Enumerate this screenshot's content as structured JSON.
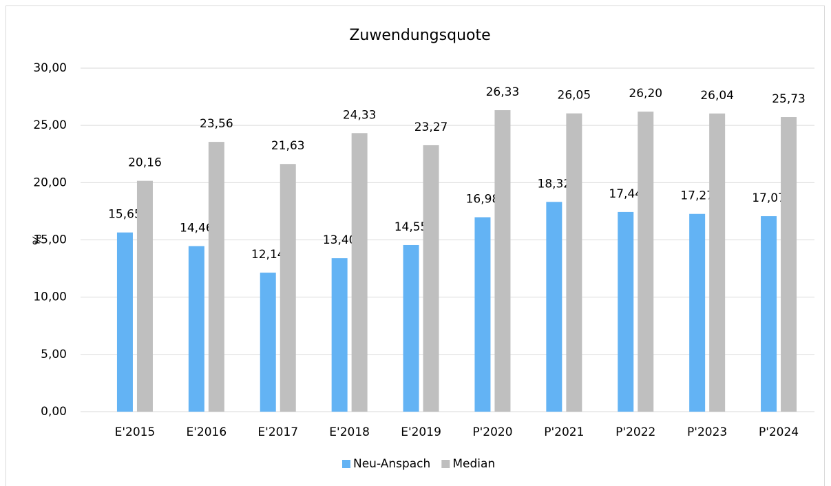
{
  "chart_data": {
    "type": "bar",
    "title": "Zuwendungsquote",
    "y_label": "%",
    "categories": [
      "E'2015",
      "E'2016",
      "E'2017",
      "E'2018",
      "E'2019",
      "P'2020",
      "P'2021",
      "P'2022",
      "P'2023",
      "P'2024"
    ],
    "series": [
      {
        "name": "Neu-Anspach",
        "color": "#63b3f4",
        "values": [
          15.65,
          14.46,
          12.14,
          13.4,
          14.55,
          16.98,
          18.32,
          17.44,
          17.27,
          17.07
        ],
        "value_labels": [
          "15,65",
          "14,46",
          "12,14",
          "13,40",
          "14,55",
          "16,98",
          "18,32",
          "17,44",
          "17,27",
          "17,07"
        ]
      },
      {
        "name": "Median",
        "color": "#bfbfbf",
        "values": [
          20.16,
          23.56,
          21.63,
          24.33,
          23.27,
          26.33,
          26.05,
          26.2,
          26.04,
          25.73
        ],
        "value_labels": [
          "20,16",
          "23,56",
          "21,63",
          "24,33",
          "23,27",
          "26,33",
          "26,05",
          "26,20",
          "26,04",
          "25,73"
        ]
      }
    ],
    "ylim": [
      0,
      30
    ],
    "yticks": [
      {
        "value": 0,
        "label": "0,00"
      },
      {
        "value": 5,
        "label": "5,00"
      },
      {
        "value": 10,
        "label": "10,00"
      },
      {
        "value": 15,
        "label": "15,00"
      },
      {
        "value": 20,
        "label": "20,00"
      },
      {
        "value": 25,
        "label": "25,00"
      },
      {
        "value": 30,
        "label": "30,00"
      }
    ],
    "grid": true,
    "legend": "bottom"
  }
}
